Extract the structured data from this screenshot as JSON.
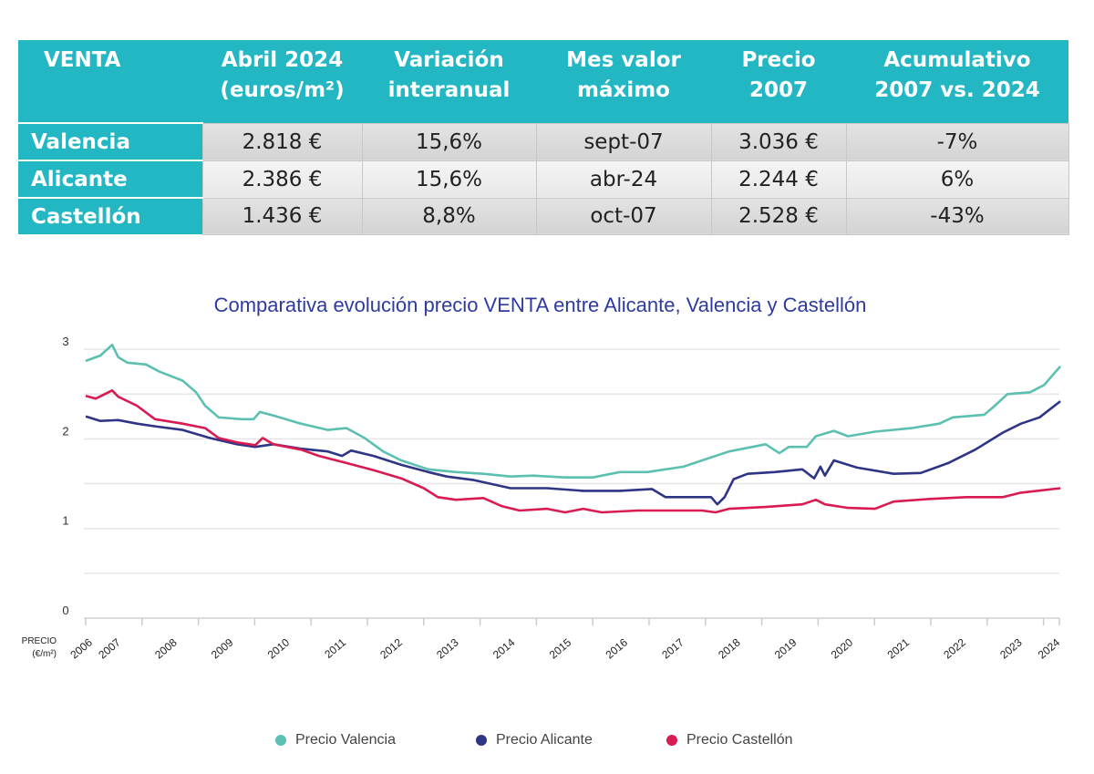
{
  "table": {
    "headers": [
      [
        "VENTA",
        ""
      ],
      [
        "Abril 2024",
        "(euros/m²)"
      ],
      [
        "Variación",
        "interanual"
      ],
      [
        "Mes valor",
        "máximo"
      ],
      [
        "Precio",
        "2007"
      ],
      [
        "Acumulativo",
        "2007 vs. 2024"
      ]
    ],
    "rows": [
      {
        "city": "Valencia",
        "price": "2.818 €",
        "variation": "15,6%",
        "max_month": "sept-07",
        "price_2007": "3.036 €",
        "cumulative": "-7%"
      },
      {
        "city": "Alicante",
        "price": "2.386 €",
        "variation": "15,6%",
        "max_month": "abr-24",
        "price_2007": "2.244 €",
        "cumulative": "6%"
      },
      {
        "city": "Castellón",
        "price": "1.436 €",
        "variation": "8,8%",
        "max_month": "oct-07",
        "price_2007": "2.528 €",
        "cumulative": "-43%"
      }
    ],
    "header_color": "#22b7c3"
  },
  "chart_data": {
    "type": "line",
    "title": "Comparativa evolución precio VENTA entre Alicante, Valencia y Castellón",
    "ylabel": "PRECIO (€/m²)",
    "ylim": [
      0,
      3
    ],
    "y_ticks": [
      0,
      1,
      2,
      3
    ],
    "grid": true,
    "x_tick_labels": [
      "2006",
      "2007",
      "2008",
      "2009",
      "2010",
      "2011",
      "2012",
      "2013",
      "2014",
      "2015",
      "2016",
      "2017",
      "2018",
      "2019",
      "2020",
      "2021",
      "2022",
      "2023",
      "2024"
    ],
    "legend_position": "bottom",
    "series": [
      {
        "name": "Precio Valencia",
        "color": "#5bbfb1",
        "points": [
          [
            2007.0,
            2.87
          ],
          [
            2007.26,
            2.93
          ],
          [
            2007.47,
            3.05
          ],
          [
            2007.58,
            2.91
          ],
          [
            2007.74,
            2.85
          ],
          [
            2008.07,
            2.83
          ],
          [
            2008.31,
            2.75
          ],
          [
            2008.72,
            2.65
          ],
          [
            2008.96,
            2.52
          ],
          [
            2009.12,
            2.37
          ],
          [
            2009.36,
            2.24
          ],
          [
            2009.77,
            2.22
          ],
          [
            2009.98,
            2.22
          ],
          [
            2010.09,
            2.3
          ],
          [
            2010.33,
            2.26
          ],
          [
            2010.82,
            2.17
          ],
          [
            2011.3,
            2.1
          ],
          [
            2011.63,
            2.12
          ],
          [
            2011.95,
            2.01
          ],
          [
            2012.28,
            1.86
          ],
          [
            2012.6,
            1.76
          ],
          [
            2013.08,
            1.66
          ],
          [
            2013.57,
            1.63
          ],
          [
            2014.06,
            1.61
          ],
          [
            2014.54,
            1.58
          ],
          [
            2014.94,
            1.59
          ],
          [
            2015.51,
            1.57
          ],
          [
            2016.0,
            1.57
          ],
          [
            2016.48,
            1.63
          ],
          [
            2016.97,
            1.63
          ],
          [
            2017.61,
            1.69
          ],
          [
            2017.94,
            1.76
          ],
          [
            2018.42,
            1.86
          ],
          [
            2019.07,
            1.94
          ],
          [
            2019.31,
            1.84
          ],
          [
            2019.48,
            1.91
          ],
          [
            2019.8,
            1.91
          ],
          [
            2019.96,
            2.03
          ],
          [
            2020.28,
            2.09
          ],
          [
            2020.53,
            2.03
          ],
          [
            2021.01,
            2.08
          ],
          [
            2021.66,
            2.12
          ],
          [
            2022.15,
            2.17
          ],
          [
            2022.39,
            2.24
          ],
          [
            2022.95,
            2.27
          ],
          [
            2023.12,
            2.36
          ],
          [
            2023.36,
            2.5
          ],
          [
            2023.76,
            2.52
          ],
          [
            2024.01,
            2.6
          ],
          [
            2024.3,
            2.81
          ]
        ]
      },
      {
        "name": "Precio Alicante",
        "color": "#2e3585",
        "points": [
          [
            2007.0,
            2.25
          ],
          [
            2007.26,
            2.2
          ],
          [
            2007.58,
            2.21
          ],
          [
            2007.91,
            2.17
          ],
          [
            2008.23,
            2.14
          ],
          [
            2008.72,
            2.1
          ],
          [
            2009.2,
            2.01
          ],
          [
            2009.69,
            1.94
          ],
          [
            2010.01,
            1.91
          ],
          [
            2010.33,
            1.94
          ],
          [
            2010.82,
            1.89
          ],
          [
            2011.3,
            1.86
          ],
          [
            2011.55,
            1.81
          ],
          [
            2011.71,
            1.87
          ],
          [
            2012.11,
            1.81
          ],
          [
            2012.6,
            1.71
          ],
          [
            2013.08,
            1.63
          ],
          [
            2013.41,
            1.58
          ],
          [
            2013.89,
            1.54
          ],
          [
            2014.54,
            1.45
          ],
          [
            2015.19,
            1.45
          ],
          [
            2015.83,
            1.42
          ],
          [
            2016.48,
            1.42
          ],
          [
            2017.05,
            1.44
          ],
          [
            2017.29,
            1.35
          ],
          [
            2017.78,
            1.35
          ],
          [
            2018.1,
            1.35
          ],
          [
            2018.21,
            1.27
          ],
          [
            2018.34,
            1.35
          ],
          [
            2018.5,
            1.55
          ],
          [
            2018.75,
            1.61
          ],
          [
            2019.23,
            1.63
          ],
          [
            2019.72,
            1.66
          ],
          [
            2019.93,
            1.56
          ],
          [
            2020.04,
            1.69
          ],
          [
            2020.12,
            1.59
          ],
          [
            2020.28,
            1.76
          ],
          [
            2020.69,
            1.68
          ],
          [
            2021.34,
            1.61
          ],
          [
            2021.82,
            1.62
          ],
          [
            2022.31,
            1.73
          ],
          [
            2022.79,
            1.88
          ],
          [
            2023.28,
            2.07
          ],
          [
            2023.6,
            2.17
          ],
          [
            2023.93,
            2.24
          ],
          [
            2024.3,
            2.42
          ]
        ]
      },
      {
        "name": "Precio Castellón",
        "color": "#d81b50",
        "points": [
          [
            2007.0,
            2.48
          ],
          [
            2007.18,
            2.45
          ],
          [
            2007.47,
            2.54
          ],
          [
            2007.58,
            2.47
          ],
          [
            2007.91,
            2.37
          ],
          [
            2008.23,
            2.22
          ],
          [
            2008.72,
            2.17
          ],
          [
            2009.12,
            2.12
          ],
          [
            2009.36,
            2.01
          ],
          [
            2009.69,
            1.96
          ],
          [
            2010.01,
            1.93
          ],
          [
            2010.14,
            2.01
          ],
          [
            2010.33,
            1.94
          ],
          [
            2010.82,
            1.88
          ],
          [
            2011.14,
            1.81
          ],
          [
            2011.63,
            1.73
          ],
          [
            2012.11,
            1.65
          ],
          [
            2012.6,
            1.56
          ],
          [
            2013.0,
            1.45
          ],
          [
            2013.25,
            1.35
          ],
          [
            2013.57,
            1.32
          ],
          [
            2014.06,
            1.34
          ],
          [
            2014.38,
            1.25
          ],
          [
            2014.7,
            1.2
          ],
          [
            2015.19,
            1.22
          ],
          [
            2015.51,
            1.18
          ],
          [
            2015.83,
            1.22
          ],
          [
            2016.16,
            1.18
          ],
          [
            2016.8,
            1.2
          ],
          [
            2017.45,
            1.2
          ],
          [
            2017.94,
            1.2
          ],
          [
            2018.18,
            1.18
          ],
          [
            2018.42,
            1.22
          ],
          [
            2019.07,
            1.24
          ],
          [
            2019.72,
            1.27
          ],
          [
            2019.96,
            1.32
          ],
          [
            2020.12,
            1.27
          ],
          [
            2020.53,
            1.23
          ],
          [
            2021.01,
            1.22
          ],
          [
            2021.34,
            1.3
          ],
          [
            2021.98,
            1.33
          ],
          [
            2022.63,
            1.35
          ],
          [
            2023.28,
            1.35
          ],
          [
            2023.6,
            1.4
          ],
          [
            2024.3,
            1.45
          ]
        ]
      }
    ]
  }
}
